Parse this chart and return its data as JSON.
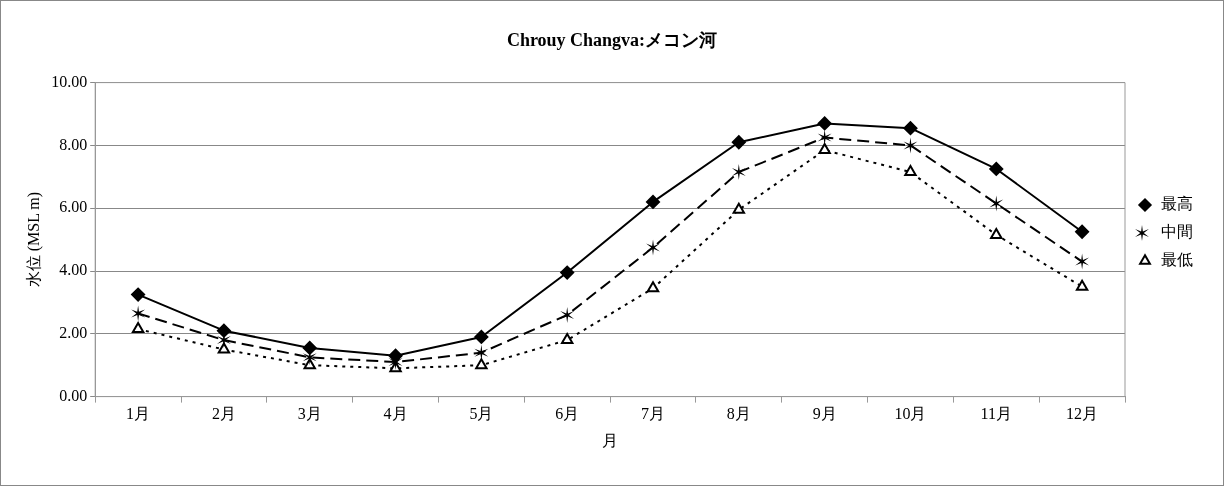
{
  "chart_data": {
    "type": "line",
    "title": "Chrouy Changva:メコン河",
    "xlabel": "月",
    "ylabel": "水位 (MSL m)",
    "categories": [
      "1月",
      "2月",
      "3月",
      "4月",
      "5月",
      "6月",
      "7月",
      "8月",
      "9月",
      "10月",
      "11月",
      "12月"
    ],
    "ylim": [
      0,
      10
    ],
    "yticks": [
      {
        "value": 0,
        "label": "0.00"
      },
      {
        "value": 2,
        "label": "2.00"
      },
      {
        "value": 4,
        "label": "4.00"
      },
      {
        "value": 6,
        "label": "6.00"
      },
      {
        "value": 8,
        "label": "8.00"
      },
      {
        "value": 10,
        "label": "10.00"
      }
    ],
    "grid": "y",
    "legend": "right",
    "series": [
      {
        "name": "最高",
        "color": "#000000",
        "marker": "diamond",
        "line_style": "solid",
        "values": [
          3.25,
          2.1,
          1.55,
          1.3,
          1.9,
          3.95,
          6.2,
          8.1,
          8.7,
          8.55,
          7.25,
          5.25
        ]
      },
      {
        "name": "中間",
        "color": "#000000",
        "marker": "cross",
        "line_style": "dashed",
        "values": [
          2.65,
          1.8,
          1.25,
          1.1,
          1.4,
          2.6,
          4.75,
          7.15,
          8.25,
          8.0,
          6.15,
          4.3
        ]
      },
      {
        "name": "最低",
        "color": "#000000",
        "marker": "triangle",
        "line_style": "dotted",
        "values": [
          2.15,
          1.5,
          1.0,
          0.9,
          1.0,
          1.8,
          3.45,
          5.95,
          7.85,
          7.15,
          5.15,
          3.5
        ]
      }
    ]
  }
}
